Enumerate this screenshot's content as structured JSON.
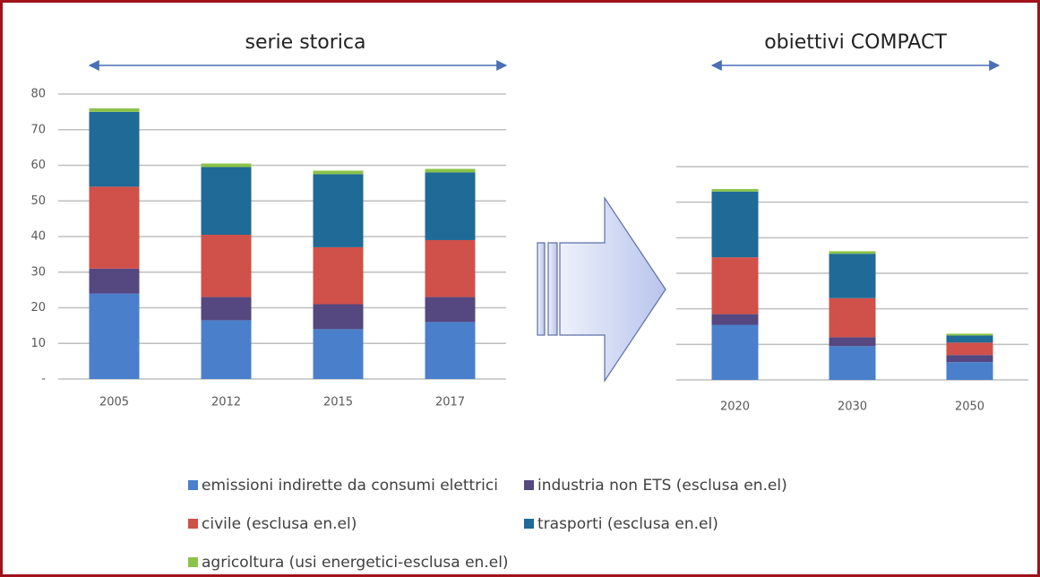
{
  "chart_data": [
    {
      "type": "bar",
      "stacked": true,
      "title": "serie storica",
      "categories": [
        "2005",
        "2012",
        "2015",
        "2017"
      ],
      "series": [
        {
          "name": "emissioni indirette da consumi elettrici",
          "color": "#4a7fcc",
          "values": [
            24,
            16.5,
            14,
            16
          ]
        },
        {
          "name": "industria non ETS (esclusa en.el)",
          "color": "#55477f",
          "values": [
            7,
            6.5,
            7,
            7
          ]
        },
        {
          "name": "civile (esclusa en.el)",
          "color": "#d0504a",
          "values": [
            23,
            17.5,
            16,
            16
          ]
        },
        {
          "name": "trasporti (esclusa en.el)",
          "color": "#1f6a96",
          "values": [
            21,
            19,
            20.5,
            19
          ]
        },
        {
          "name": "agricoltura (usi energetici-esclusa en.el)",
          "color": "#8bc34a",
          "values": [
            1,
            1,
            1,
            1
          ]
        }
      ],
      "ylim": [
        0,
        80
      ],
      "yticks": [
        {
          "value": 0,
          "label": "-"
        },
        10,
        20,
        30,
        40,
        50,
        60,
        70,
        80
      ],
      "grid": true,
      "show_tick_labels": true
    },
    {
      "type": "bar",
      "stacked": true,
      "title": "obiettivi COMPACT",
      "categories": [
        "2020",
        "2030",
        "2050"
      ],
      "series": [
        {
          "color": "#4a7fcc",
          "values": [
            15.5,
            9.5,
            5
          ]
        },
        {
          "color": "#55477f",
          "values": [
            3,
            2.5,
            2
          ]
        },
        {
          "color": "#d0504a",
          "values": [
            16,
            11,
            3.5
          ]
        },
        {
          "color": "#1f6a96",
          "values": [
            18.5,
            12.5,
            2
          ]
        },
        {
          "color": "#8bc34a",
          "values": [
            0.7,
            0.7,
            0.5
          ]
        }
      ],
      "ylim": [
        0,
        60
      ],
      "yticks": [
        0,
        10,
        20,
        30,
        40,
        50,
        60
      ],
      "grid": true,
      "show_tick_labels": false
    }
  ]
}
